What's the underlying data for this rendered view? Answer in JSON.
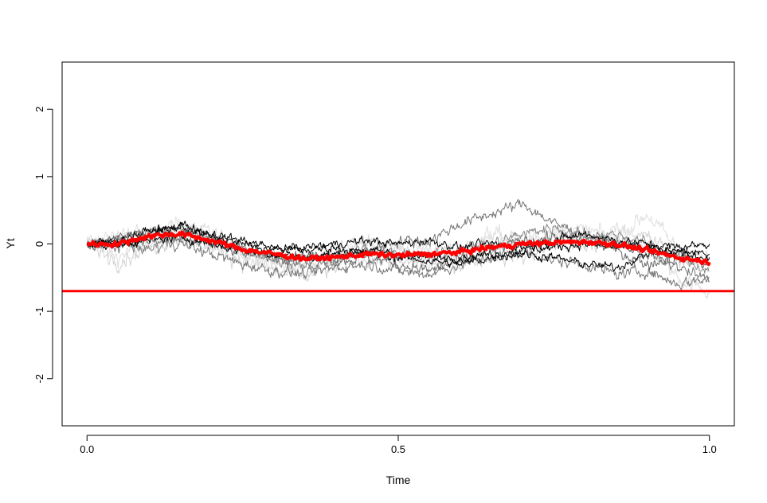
{
  "chart_data": {
    "type": "line",
    "title": "",
    "xlabel": "Time",
    "ylabel": "Yt",
    "xlim": [
      -0.04,
      1.04
    ],
    "ylim": [
      -2.7,
      2.7
    ],
    "x_ticks": [
      0.0,
      0.5,
      1.0
    ],
    "x_tick_labels": [
      "0.0",
      "0.5",
      "1.0"
    ],
    "y_ticks": [
      -2,
      -1,
      0,
      1,
      2
    ],
    "y_tick_labels": [
      "-2",
      "-1",
      "0",
      "1",
      "2"
    ],
    "grid": false,
    "legend": "none",
    "hline": {
      "y": -0.7,
      "color": "#ff0000"
    },
    "x": [
      0.0,
      0.05,
      0.1,
      0.15,
      0.2,
      0.25,
      0.3,
      0.35,
      0.4,
      0.45,
      0.5,
      0.55,
      0.6,
      0.65,
      0.7,
      0.75,
      0.8,
      0.85,
      0.9,
      0.95,
      1.0
    ],
    "series": [
      {
        "color": "#dddddd",
        "width": 1,
        "roughness": 0.09,
        "values": [
          0.0,
          -0.2,
          0.1,
          0.25,
          0.15,
          -0.1,
          -0.3,
          -0.35,
          -0.15,
          0.0,
          -0.1,
          -0.05,
          -0.15,
          0.15,
          0.05,
          0.1,
          0.0,
          0.2,
          0.0,
          -0.5,
          -0.7
        ]
      },
      {
        "color": "#e0e0e0",
        "width": 1,
        "roughness": 0.09,
        "values": [
          0.0,
          0.15,
          0.1,
          0.3,
          0.1,
          -0.15,
          -0.25,
          -0.2,
          -0.1,
          0.05,
          -0.15,
          -0.3,
          -0.1,
          0.05,
          -0.05,
          0.15,
          0.2,
          0.1,
          0.45,
          -0.1,
          -0.25
        ]
      },
      {
        "color": "#d5d5d5",
        "width": 1,
        "roughness": 0.09,
        "values": [
          0.0,
          -0.25,
          -0.05,
          0.1,
          -0.05,
          -0.25,
          -0.4,
          -0.5,
          -0.35,
          -0.2,
          -0.3,
          -0.25,
          -0.3,
          -0.15,
          -0.2,
          0.0,
          -0.05,
          0.05,
          0.1,
          -0.2,
          -0.35
        ]
      },
      {
        "color": "#777777",
        "width": 1,
        "roughness": 0.06,
        "values": [
          0.0,
          0.05,
          0.2,
          0.25,
          0.05,
          -0.1,
          -0.2,
          -0.25,
          -0.2,
          -0.1,
          0.05,
          0.05,
          0.3,
          0.45,
          0.6,
          0.3,
          0.15,
          0.0,
          -0.15,
          -0.35,
          -0.55
        ]
      },
      {
        "color": "#777777",
        "width": 1,
        "roughness": 0.06,
        "values": [
          0.0,
          -0.05,
          0.05,
          0.0,
          -0.15,
          -0.3,
          -0.4,
          -0.45,
          -0.35,
          -0.3,
          -0.4,
          -0.45,
          -0.3,
          -0.2,
          -0.1,
          -0.25,
          -0.3,
          -0.45,
          -0.4,
          -0.6,
          -0.5
        ]
      },
      {
        "color": "#6a6a6a",
        "width": 1,
        "roughness": 0.06,
        "values": [
          0.0,
          0.1,
          0.2,
          0.1,
          0.0,
          -0.1,
          -0.2,
          -0.15,
          -0.25,
          -0.2,
          -0.3,
          -0.4,
          -0.25,
          -0.1,
          0.05,
          0.1,
          0.05,
          -0.1,
          -0.3,
          -0.2,
          -0.3
        ]
      },
      {
        "color": "#888888",
        "width": 1,
        "roughness": 0.06,
        "values": [
          0.0,
          0.05,
          -0.1,
          0.15,
          0.1,
          -0.05,
          -0.25,
          -0.35,
          -0.2,
          -0.05,
          -0.15,
          -0.2,
          -0.05,
          0.0,
          0.15,
          0.25,
          0.1,
          0.15,
          0.0,
          -0.2,
          -0.4
        ]
      },
      {
        "color": "#000000",
        "width": 1,
        "roughness": 0.045,
        "values": [
          0.0,
          0.05,
          0.2,
          0.25,
          0.1,
          0.0,
          -0.1,
          -0.05,
          0.0,
          0.05,
          0.0,
          0.05,
          -0.05,
          0.0,
          -0.05,
          0.05,
          0.15,
          0.05,
          0.0,
          -0.05,
          0.0
        ]
      },
      {
        "color": "#000000",
        "width": 1,
        "roughness": 0.045,
        "values": [
          0.0,
          0.0,
          0.05,
          0.1,
          0.0,
          -0.1,
          -0.15,
          -0.2,
          -0.15,
          -0.1,
          -0.15,
          -0.2,
          -0.2,
          -0.15,
          -0.1,
          -0.05,
          0.0,
          -0.05,
          -0.05,
          -0.15,
          -0.2
        ]
      },
      {
        "color": "#000000",
        "width": 1,
        "roughness": 0.045,
        "values": [
          0.0,
          -0.05,
          0.1,
          0.3,
          0.15,
          0.05,
          -0.05,
          -0.1,
          -0.05,
          -0.15,
          -0.2,
          -0.25,
          -0.3,
          -0.2,
          -0.15,
          -0.2,
          -0.3,
          -0.35,
          -0.15,
          -0.1,
          -0.15
        ]
      },
      {
        "color": "#ff0000",
        "width": 4,
        "roughness": 0.025,
        "values": [
          0.0,
          0.0,
          0.12,
          0.15,
          0.05,
          -0.08,
          -0.15,
          -0.22,
          -0.2,
          -0.15,
          -0.17,
          -0.15,
          -0.12,
          -0.05,
          0.0,
          0.02,
          0.03,
          0.0,
          -0.1,
          -0.2,
          -0.27
        ]
      }
    ]
  }
}
